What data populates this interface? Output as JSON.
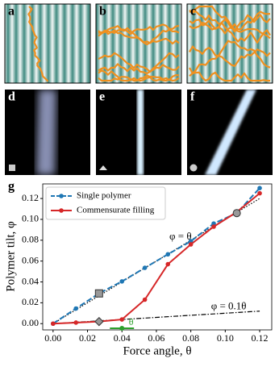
{
  "panels": [
    "a",
    "b",
    "c",
    "d",
    "e",
    "f"
  ],
  "chart_data": {
    "type": "line",
    "panel_label": "g",
    "x_label": "Force angle, θ",
    "y_label": "Polymer tilt, φ",
    "xlim": [
      -0.006,
      0.127
    ],
    "ylim": [
      -0.006,
      0.134
    ],
    "xticks": [
      {
        "value": 0,
        "label": "0.00"
      },
      {
        "value": 0.02,
        "label": "0.02"
      },
      {
        "value": 0.04,
        "label": "0.04"
      },
      {
        "value": 0.06,
        "label": "0.06"
      },
      {
        "value": 0.08,
        "label": "0.08"
      },
      {
        "value": 0.1,
        "label": "0.10"
      },
      {
        "value": 0.12,
        "label": "0.12"
      }
    ],
    "yticks": [
      {
        "value": 0,
        "label": "0.00"
      },
      {
        "value": 0.02,
        "label": "0.02"
      },
      {
        "value": 0.04,
        "label": "0.04"
      },
      {
        "value": 0.06,
        "label": "0.06"
      },
      {
        "value": 0.08,
        "label": "0.08"
      },
      {
        "value": 0.1,
        "label": "0.10"
      },
      {
        "value": 0.12,
        "label": "0.12"
      }
    ],
    "x": [
      0,
      0.0133,
      0.0267,
      0.04,
      0.0533,
      0.0667,
      0.08,
      0.0933,
      0.1067,
      0.12
    ],
    "series": [
      {
        "name": "Single polymer",
        "color": "#1f77b4",
        "values": [
          0,
          0.0145,
          0.029,
          0.0405,
          0.0535,
          0.0665,
          0.079,
          0.096,
          0.106,
          0.13
        ]
      },
      {
        "name": "Commensurate filling",
        "color": "#d62728",
        "values": [
          0,
          0.001,
          0.002,
          0.004,
          0.023,
          0.057,
          0.076,
          0.093,
          0.107,
          0.125
        ]
      }
    ],
    "reference_lines": [
      {
        "label": "φ = θ",
        "slope": 1
      },
      {
        "label": "φ = 0.1θ",
        "slope": 0.1
      }
    ],
    "arrow_label": "θ"
  }
}
